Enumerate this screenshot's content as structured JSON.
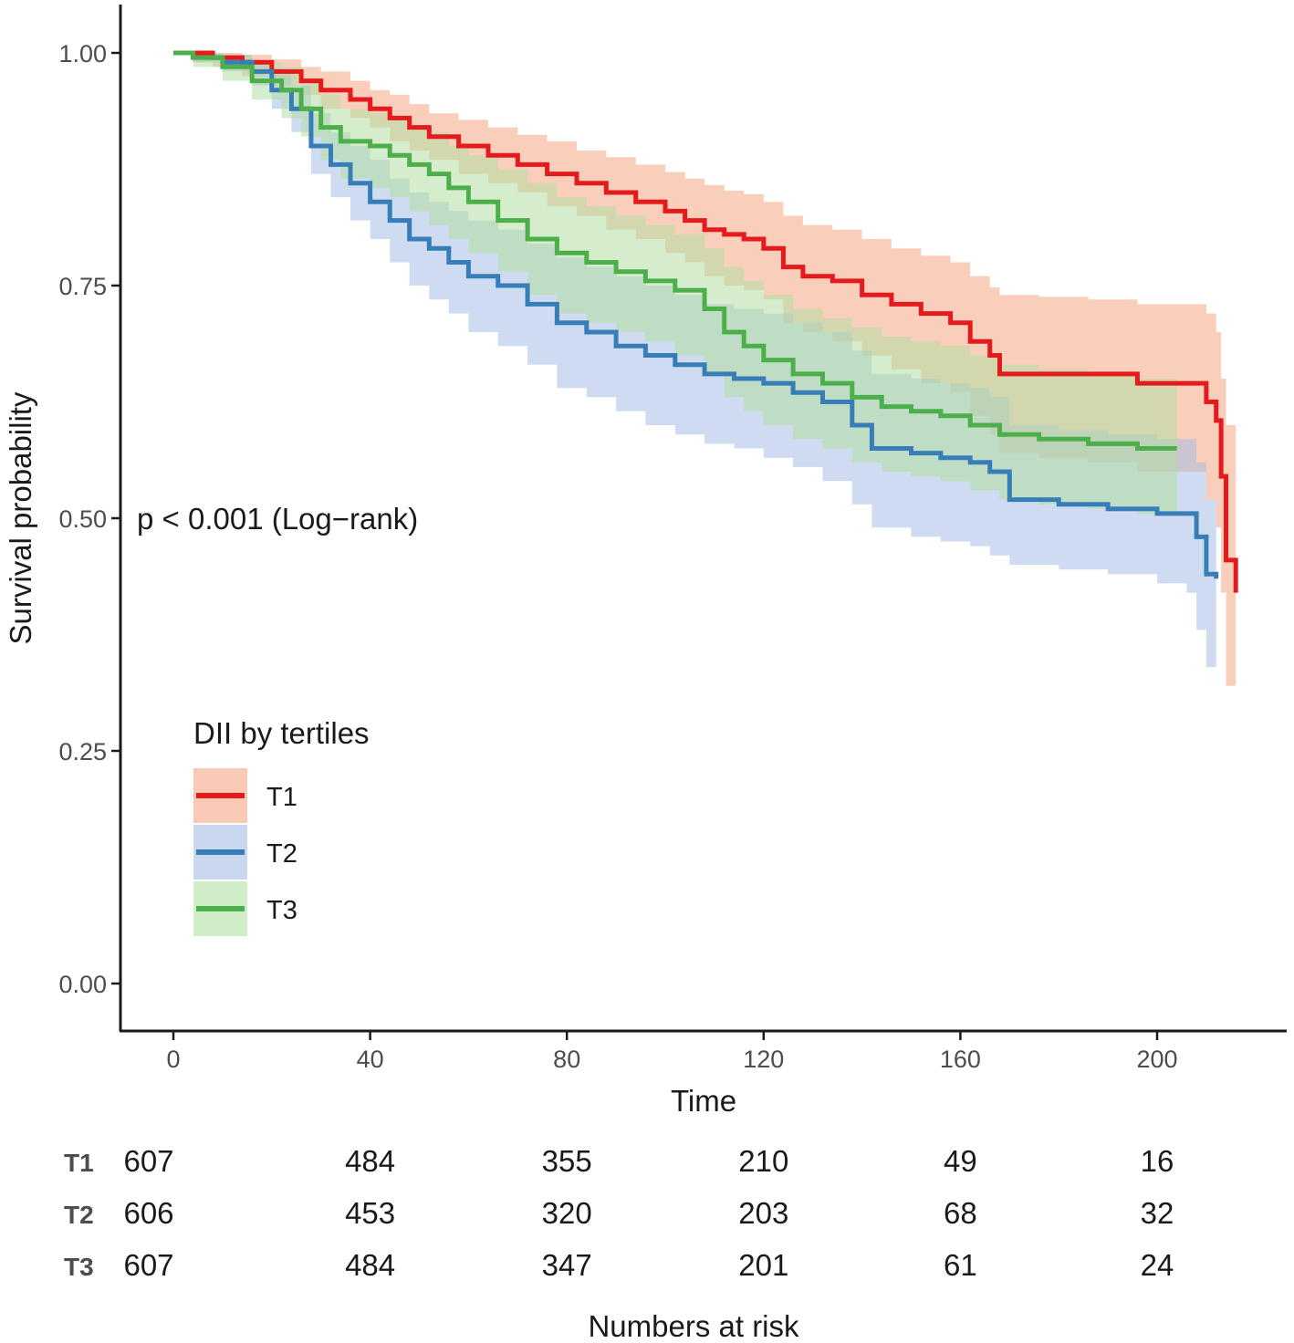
{
  "chart_data": {
    "type": "line",
    "subtype": "kaplan-meier",
    "title": "",
    "xlabel": "Time",
    "ylabel": "Survival probability",
    "xlim": [
      -11,
      226
    ],
    "ylim": [
      -0.045,
      1.05
    ],
    "x_ticks": [
      0,
      40,
      80,
      120,
      160,
      200
    ],
    "y_ticks": [
      0.0,
      0.25,
      0.5,
      0.75,
      1.0
    ],
    "y_tick_labels": [
      "0.00",
      "0.25",
      "0.50",
      "0.75",
      "1.00"
    ],
    "x_tick_labels": [
      "0",
      "40",
      "80",
      "120",
      "160",
      "200"
    ],
    "grid": false,
    "annotation": "p < 0.001 (Log−rank)",
    "legend": {
      "title": "DII by tertiles",
      "placement": "lower-left",
      "entries": [
        "T1",
        "T2",
        "T3"
      ]
    },
    "series": [
      {
        "name": "T1",
        "color": "#e41a1c",
        "band_color": "#f4a582",
        "x": [
          0,
          4,
          8,
          14,
          20,
          26,
          30,
          36,
          40,
          44,
          48,
          52,
          58,
          64,
          70,
          76,
          82,
          88,
          94,
          100,
          104,
          108,
          112,
          116,
          120,
          124,
          128,
          134,
          140,
          146,
          152,
          158,
          162,
          166,
          168,
          176,
          186,
          196,
          200,
          210,
          212,
          213,
          214,
          216
        ],
        "y": [
          1.0,
          1.0,
          0.995,
          0.99,
          0.98,
          0.97,
          0.96,
          0.95,
          0.94,
          0.93,
          0.92,
          0.91,
          0.9,
          0.89,
          0.88,
          0.87,
          0.86,
          0.85,
          0.84,
          0.83,
          0.82,
          0.81,
          0.805,
          0.8,
          0.79,
          0.77,
          0.76,
          0.755,
          0.74,
          0.73,
          0.72,
          0.71,
          0.69,
          0.675,
          0.655,
          0.655,
          0.655,
          0.645,
          0.645,
          0.625,
          0.605,
          0.545,
          0.455,
          0.42
        ],
        "lower": [
          1.0,
          0.99,
          0.985,
          0.975,
          0.965,
          0.955,
          0.94,
          0.93,
          0.92,
          0.905,
          0.895,
          0.885,
          0.87,
          0.86,
          0.85,
          0.835,
          0.825,
          0.81,
          0.8,
          0.785,
          0.775,
          0.76,
          0.75,
          0.745,
          0.735,
          0.71,
          0.7,
          0.69,
          0.675,
          0.66,
          0.645,
          0.635,
          0.61,
          0.59,
          0.57,
          0.565,
          0.56,
          0.55,
          0.55,
          0.52,
          0.49,
          0.42,
          0.32,
          0.28
        ],
        "upper": [
          1.0,
          1.0,
          1.0,
          0.998,
          0.993,
          0.985,
          0.98,
          0.97,
          0.96,
          0.955,
          0.945,
          0.935,
          0.928,
          0.92,
          0.912,
          0.905,
          0.895,
          0.888,
          0.88,
          0.872,
          0.865,
          0.858,
          0.852,
          0.848,
          0.84,
          0.825,
          0.815,
          0.81,
          0.8,
          0.79,
          0.782,
          0.775,
          0.76,
          0.748,
          0.74,
          0.738,
          0.735,
          0.73,
          0.73,
          0.72,
          0.7,
          0.65,
          0.6,
          0.56
        ]
      },
      {
        "name": "T2",
        "color": "#377eb8",
        "band_color": "#a6bde3",
        "x": [
          0,
          4,
          10,
          16,
          20,
          24,
          28,
          32,
          36,
          40,
          44,
          48,
          52,
          56,
          60,
          66,
          72,
          78,
          84,
          90,
          96,
          102,
          108,
          114,
          120,
          126,
          132,
          138,
          142,
          150,
          156,
          162,
          166,
          170,
          180,
          190,
          200,
          206,
          208,
          210,
          212
        ],
        "y": [
          1.0,
          0.995,
          0.99,
          0.98,
          0.96,
          0.94,
          0.9,
          0.88,
          0.86,
          0.84,
          0.82,
          0.8,
          0.79,
          0.775,
          0.76,
          0.75,
          0.73,
          0.71,
          0.7,
          0.685,
          0.675,
          0.665,
          0.655,
          0.65,
          0.645,
          0.635,
          0.625,
          0.6,
          0.575,
          0.57,
          0.565,
          0.56,
          0.55,
          0.52,
          0.515,
          0.51,
          0.505,
          0.505,
          0.48,
          0.44,
          0.435
        ],
        "lower": [
          1.0,
          0.99,
          0.98,
          0.965,
          0.94,
          0.915,
          0.87,
          0.845,
          0.82,
          0.8,
          0.775,
          0.75,
          0.735,
          0.72,
          0.7,
          0.685,
          0.665,
          0.64,
          0.63,
          0.615,
          0.6,
          0.59,
          0.58,
          0.575,
          0.565,
          0.555,
          0.54,
          0.515,
          0.49,
          0.48,
          0.475,
          0.47,
          0.46,
          0.45,
          0.445,
          0.44,
          0.43,
          0.42,
          0.38,
          0.34,
          0.33
        ],
        "upper": [
          1.0,
          1.0,
          0.998,
          0.992,
          0.98,
          0.965,
          0.935,
          0.915,
          0.9,
          0.885,
          0.865,
          0.85,
          0.84,
          0.83,
          0.82,
          0.81,
          0.795,
          0.78,
          0.77,
          0.76,
          0.75,
          0.74,
          0.73,
          0.725,
          0.72,
          0.71,
          0.7,
          0.68,
          0.655,
          0.65,
          0.645,
          0.64,
          0.63,
          0.6,
          0.595,
          0.59,
          0.585,
          0.585,
          0.56,
          0.52,
          0.515
        ]
      },
      {
        "name": "T3",
        "color": "#4daf4a",
        "band_color": "#b2dfa3",
        "x": [
          0,
          4,
          10,
          16,
          22,
          26,
          30,
          34,
          40,
          44,
          48,
          52,
          56,
          60,
          66,
          72,
          78,
          84,
          90,
          96,
          102,
          108,
          112,
          116,
          120,
          126,
          132,
          138,
          144,
          150,
          156,
          162,
          168,
          176,
          186,
          196,
          204
        ],
        "y": [
          1.0,
          0.995,
          0.985,
          0.97,
          0.96,
          0.94,
          0.92,
          0.905,
          0.9,
          0.89,
          0.88,
          0.87,
          0.855,
          0.84,
          0.82,
          0.8,
          0.785,
          0.775,
          0.765,
          0.755,
          0.745,
          0.725,
          0.7,
          0.685,
          0.67,
          0.655,
          0.645,
          0.63,
          0.62,
          0.615,
          0.61,
          0.6,
          0.59,
          0.585,
          0.58,
          0.575,
          0.575
        ],
        "lower": [
          1.0,
          0.985,
          0.97,
          0.95,
          0.93,
          0.91,
          0.885,
          0.865,
          0.855,
          0.845,
          0.83,
          0.815,
          0.8,
          0.785,
          0.765,
          0.74,
          0.72,
          0.71,
          0.7,
          0.69,
          0.675,
          0.655,
          0.63,
          0.615,
          0.6,
          0.585,
          0.575,
          0.56,
          0.55,
          0.545,
          0.54,
          0.53,
          0.52,
          0.515,
          0.51,
          0.505,
          0.505
        ],
        "upper": [
          1.0,
          1.0,
          0.998,
          0.99,
          0.985,
          0.97,
          0.955,
          0.94,
          0.935,
          0.93,
          0.92,
          0.915,
          0.9,
          0.89,
          0.875,
          0.86,
          0.845,
          0.835,
          0.825,
          0.815,
          0.805,
          0.79,
          0.77,
          0.755,
          0.74,
          0.725,
          0.715,
          0.705,
          0.695,
          0.69,
          0.685,
          0.675,
          0.665,
          0.66,
          0.655,
          0.65,
          0.65
        ]
      }
    ]
  },
  "risk_table": {
    "title": "Numbers at risk",
    "times": [
      0,
      40,
      80,
      120,
      160,
      200
    ],
    "rows": [
      {
        "label": "T1",
        "values": [
          "607",
          "484",
          "355",
          "210",
          "49",
          "16"
        ]
      },
      {
        "label": "T2",
        "values": [
          "606",
          "453",
          "320",
          "203",
          "68",
          "32"
        ]
      },
      {
        "label": "T3",
        "values": [
          "607",
          "484",
          "347",
          "201",
          "61",
          "24"
        ]
      }
    ]
  }
}
